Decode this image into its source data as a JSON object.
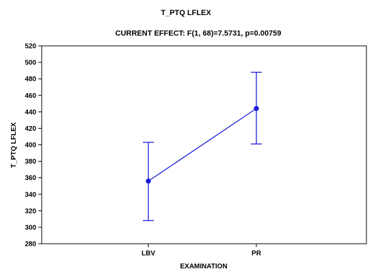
{
  "chart_data": {
    "type": "line",
    "title": "T_PTQ LFLEX",
    "subtitle": "CURRENT EFFECT: F(1, 68)=7.5731, p=0.00759",
    "xlabel": "EXAMINATION",
    "ylabel": "T_PTQ LFLEX",
    "categories": [
      "LBV",
      "PR"
    ],
    "ylim": [
      280,
      520
    ],
    "yticks": [
      280,
      300,
      320,
      340,
      360,
      380,
      400,
      420,
      440,
      460,
      480,
      500,
      520
    ],
    "series": [
      {
        "values": [
          356,
          444
        ],
        "error_lower": [
          308,
          401
        ],
        "error_upper": [
          403,
          488
        ],
        "color": "#1a1adb"
      }
    ],
    "grid": false,
    "legend": "none"
  }
}
